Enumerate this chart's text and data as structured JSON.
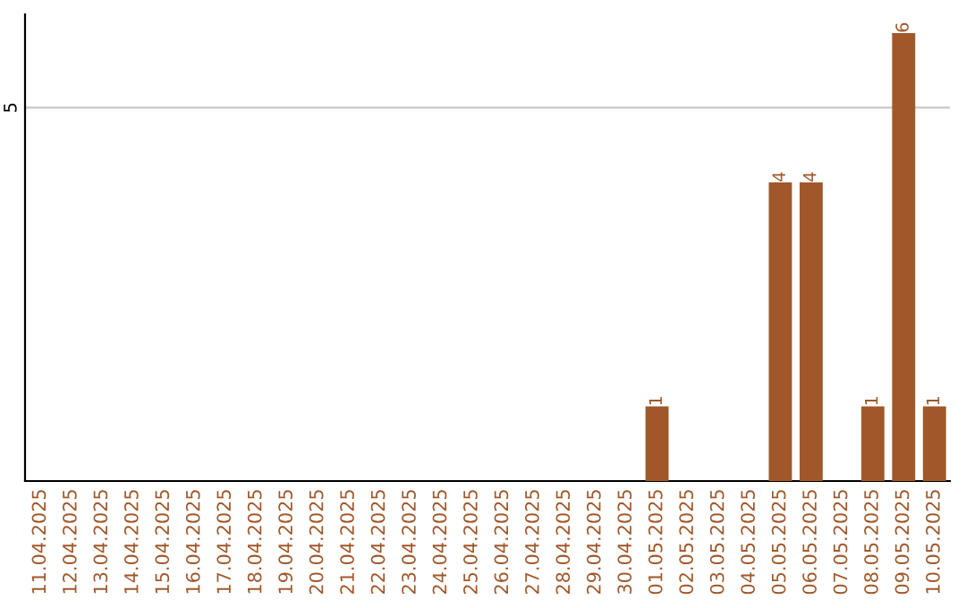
{
  "chart_data": {
    "type": "bar",
    "categories": [
      "11.04.2025",
      "12.04.2025",
      "13.04.2025",
      "14.04.2025",
      "15.04.2025",
      "16.04.2025",
      "17.04.2025",
      "18.04.2025",
      "19.04.2025",
      "20.04.2025",
      "21.04.2025",
      "22.04.2025",
      "23.04.2025",
      "24.04.2025",
      "25.04.2025",
      "26.04.2025",
      "27.04.2025",
      "28.04.2025",
      "29.04.2025",
      "30.04.2025",
      "01.05.2025",
      "02.05.2025",
      "03.05.2025",
      "04.05.2025",
      "05.05.2025",
      "06.05.2025",
      "07.05.2025",
      "08.05.2025",
      "09.05.2025",
      "10.05.2025"
    ],
    "values": [
      null,
      null,
      null,
      null,
      null,
      null,
      null,
      null,
      null,
      null,
      null,
      null,
      null,
      null,
      null,
      null,
      null,
      null,
      null,
      null,
      1,
      null,
      null,
      null,
      4,
      4,
      null,
      1,
      6,
      1
    ],
    "data_labels": true,
    "color": "#a0582a",
    "ylim": [
      0,
      6.25
    ],
    "yticks": [
      5
    ],
    "grid": "y"
  }
}
